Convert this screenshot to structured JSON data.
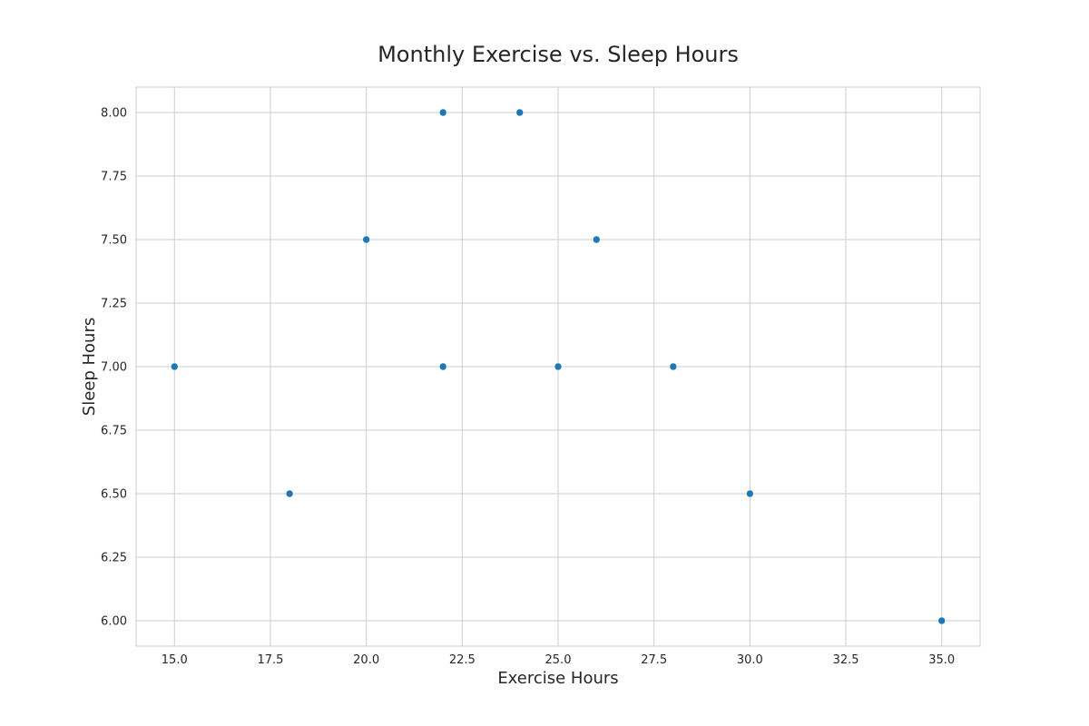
{
  "chart_data": {
    "type": "scatter",
    "title": "Monthly Exercise vs. Sleep Hours",
    "xlabel": "Exercise Hours",
    "ylabel": "Sleep Hours",
    "xlim": [
      14.0,
      36.0
    ],
    "ylim": [
      5.9,
      8.1
    ],
    "x_ticks": [
      15.0,
      17.5,
      20.0,
      22.5,
      25.0,
      27.5,
      30.0,
      32.5,
      35.0
    ],
    "x_tick_labels": [
      "15.0",
      "17.5",
      "20.0",
      "22.5",
      "25.0",
      "27.5",
      "30.0",
      "32.5",
      "35.0"
    ],
    "y_ticks": [
      6.0,
      6.25,
      6.5,
      6.75,
      7.0,
      7.25,
      7.5,
      7.75,
      8.0
    ],
    "y_tick_labels": [
      "6.00",
      "6.25",
      "6.50",
      "6.75",
      "7.00",
      "7.25",
      "7.50",
      "7.75",
      "8.00"
    ],
    "grid": true,
    "legend": "none",
    "marker_color": "#1f77b4",
    "grid_color": "#cccccc",
    "x": [
      15,
      18,
      20,
      22,
      22,
      24,
      25,
      26,
      28,
      30,
      35
    ],
    "y": [
      7.0,
      6.5,
      7.5,
      8.0,
      7.0,
      8.0,
      7.0,
      7.5,
      7.0,
      6.5,
      6.0
    ]
  }
}
